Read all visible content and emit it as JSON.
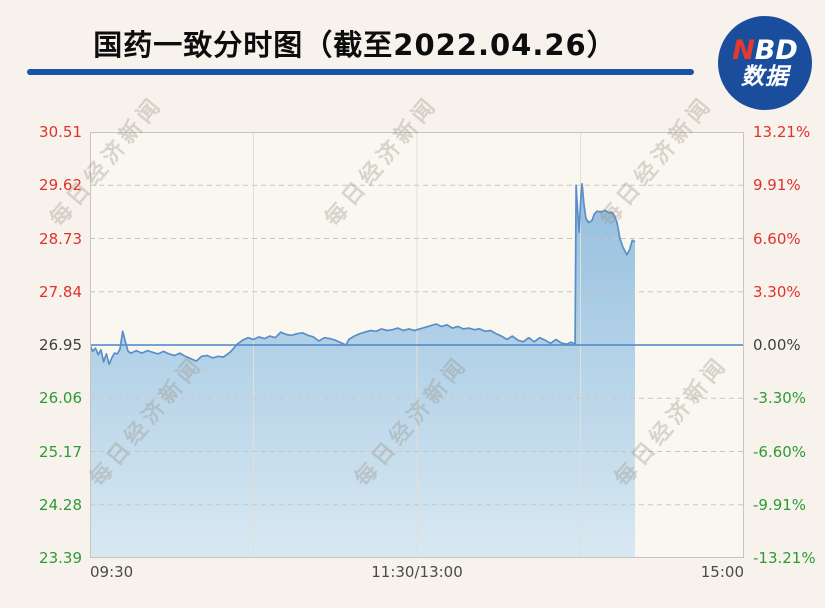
{
  "header": {
    "title": "国药一致分时图（截至2022.04.26）",
    "logo": {
      "n": "N",
      "bd": "BD",
      "sub": "数据"
    }
  },
  "watermark": {
    "text": "每日经济新闻"
  },
  "colors": {
    "up": "#e0322c",
    "down": "#2f9a35",
    "neutral": "#3f3f3f",
    "line": "#5a8ec8",
    "zero_line": "#4a86c8",
    "fill_top": "#84b5db",
    "fill_bottom": "#d7e8f2",
    "grid_dashed": "#c9c6bf",
    "grid_vertical": "#e2dfd8",
    "plot_border": "#c8c5be",
    "title_rule": "#1456a5",
    "logo_bg": "#1a4e9c",
    "logo_n": "#e8372c",
    "background": "#f7f3ec",
    "plot_background": "#faf7f1",
    "axis_time": "#4a4a4a"
  },
  "chart_data": {
    "type": "area",
    "title": "国药一致分时图（截至2022.04.26）",
    "stock_name": "国药一致",
    "as_of_date": "2022.04.26",
    "source_badge": "NBD数据",
    "prev_close": 26.95,
    "price_axis": [
      30.51,
      29.62,
      28.73,
      27.84,
      26.95,
      26.06,
      25.17,
      24.28,
      23.39
    ],
    "pct_axis": [
      "13.21%",
      "9.91%",
      "6.60%",
      "3.30%",
      "0.00%",
      "-3.30%",
      "-6.60%",
      "-9.91%",
      "-13.21%"
    ],
    "x_ticks": [
      "09:30",
      "11:30/13:00",
      "15:00"
    ],
    "total_minutes": 240,
    "ylim_pct": [
      -13.21,
      13.21
    ],
    "grid": "horizontal dashed lines at each tick, light solid vertical lines at 10:30 / 11:30-13:00 / 14:00",
    "legend": "none",
    "series": [
      {
        "name": "price_change_pct",
        "points": [
          [
            0,
            0
          ],
          [
            1,
            -0.4
          ],
          [
            2,
            -0.2
          ],
          [
            3,
            -0.6
          ],
          [
            4,
            -0.3
          ],
          [
            5,
            -1.05
          ],
          [
            6,
            -0.55
          ],
          [
            7,
            -1.2
          ],
          [
            8,
            -0.8
          ],
          [
            9,
            -0.5
          ],
          [
            10,
            -0.55
          ],
          [
            11,
            -0.25
          ],
          [
            12,
            0.85
          ],
          [
            13,
            0.2
          ],
          [
            14,
            -0.4
          ],
          [
            15,
            -0.5
          ],
          [
            17,
            -0.35
          ],
          [
            19,
            -0.5
          ],
          [
            21,
            -0.35
          ],
          [
            23,
            -0.45
          ],
          [
            25,
            -0.55
          ],
          [
            27,
            -0.4
          ],
          [
            29,
            -0.55
          ],
          [
            31,
            -0.65
          ],
          [
            33,
            -0.5
          ],
          [
            35,
            -0.7
          ],
          [
            37,
            -0.85
          ],
          [
            39,
            -1.0
          ],
          [
            41,
            -0.7
          ],
          [
            43,
            -0.65
          ],
          [
            45,
            -0.8
          ],
          [
            47,
            -0.7
          ],
          [
            49,
            -0.75
          ],
          [
            51,
            -0.5
          ],
          [
            52,
            -0.35
          ],
          [
            53,
            -0.15
          ],
          [
            54,
            0.05
          ],
          [
            56,
            0.3
          ],
          [
            58,
            0.45
          ],
          [
            60,
            0.35
          ],
          [
            62,
            0.5
          ],
          [
            64,
            0.4
          ],
          [
            66,
            0.55
          ],
          [
            68,
            0.45
          ],
          [
            70,
            0.8
          ],
          [
            72,
            0.65
          ],
          [
            74,
            0.6
          ],
          [
            76,
            0.7
          ],
          [
            78,
            0.75
          ],
          [
            80,
            0.6
          ],
          [
            82,
            0.5
          ],
          [
            84,
            0.25
          ],
          [
            86,
            0.45
          ],
          [
            88,
            0.4
          ],
          [
            90,
            0.3
          ],
          [
            92,
            0.15
          ],
          [
            94,
            0.0
          ],
          [
            95,
            0.35
          ],
          [
            97,
            0.55
          ],
          [
            99,
            0.7
          ],
          [
            101,
            0.8
          ],
          [
            103,
            0.9
          ],
          [
            105,
            0.85
          ],
          [
            107,
            1.0
          ],
          [
            109,
            0.9
          ],
          [
            111,
            0.95
          ],
          [
            113,
            1.05
          ],
          [
            115,
            0.9
          ],
          [
            117,
            1.0
          ],
          [
            119,
            0.9
          ],
          [
            121,
            1.0
          ],
          [
            123,
            1.1
          ],
          [
            125,
            1.2
          ],
          [
            127,
            1.3
          ],
          [
            129,
            1.15
          ],
          [
            131,
            1.25
          ],
          [
            133,
            1.05
          ],
          [
            135,
            1.15
          ],
          [
            137,
            1.0
          ],
          [
            139,
            1.05
          ],
          [
            141,
            0.95
          ],
          [
            143,
            1.0
          ],
          [
            145,
            0.85
          ],
          [
            147,
            0.9
          ],
          [
            149,
            0.7
          ],
          [
            151,
            0.55
          ],
          [
            153,
            0.35
          ],
          [
            155,
            0.55
          ],
          [
            157,
            0.3
          ],
          [
            159,
            0.2
          ],
          [
            161,
            0.45
          ],
          [
            163,
            0.2
          ],
          [
            165,
            0.45
          ],
          [
            167,
            0.3
          ],
          [
            169,
            0.1
          ],
          [
            171,
            0.35
          ],
          [
            173,
            0.12
          ],
          [
            175,
            0.05
          ],
          [
            176.5,
            0.18
          ],
          [
            178,
            0.05
          ],
          [
            178.4,
            9.9
          ],
          [
            179,
            8.2
          ],
          [
            179.5,
            7.0
          ],
          [
            180.2,
            9.3
          ],
          [
            180.6,
            10.0
          ],
          [
            181.2,
            8.8
          ],
          [
            182,
            7.85
          ],
          [
            183,
            7.6
          ],
          [
            184.2,
            7.7
          ],
          [
            185,
            8.1
          ],
          [
            186,
            8.3
          ],
          [
            187.5,
            8.25
          ],
          [
            189,
            8.35
          ],
          [
            190.5,
            8.2
          ],
          [
            191.5,
            8.25
          ],
          [
            192.5,
            8.0
          ],
          [
            193.4,
            7.6
          ],
          [
            194.5,
            6.6
          ],
          [
            195.5,
            6.1
          ],
          [
            197,
            5.6
          ],
          [
            198,
            5.9
          ],
          [
            199,
            6.5
          ],
          [
            200,
            6.4
          ]
        ]
      }
    ]
  }
}
